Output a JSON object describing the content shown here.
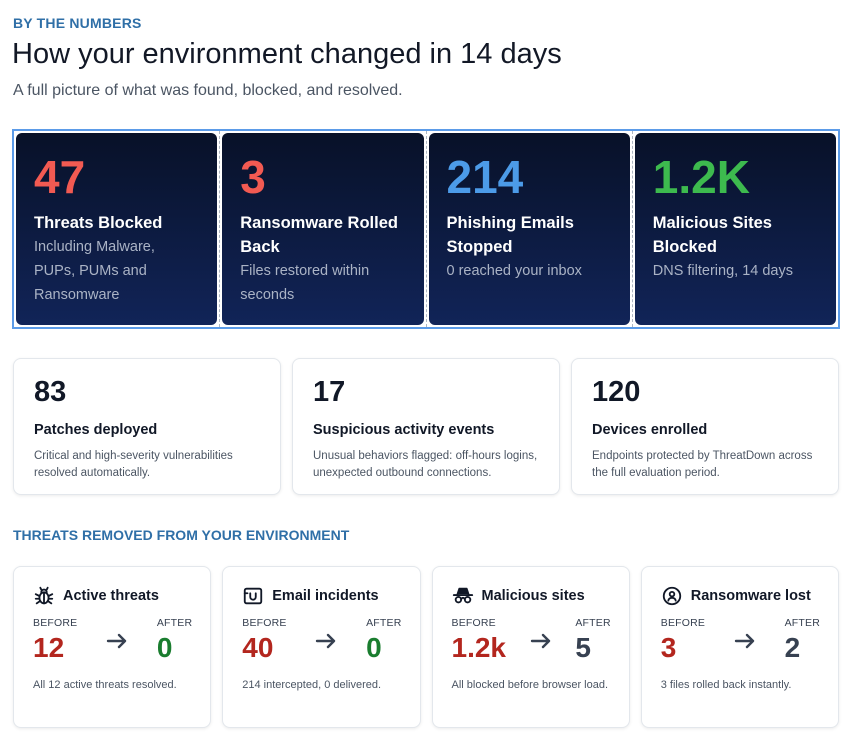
{
  "header": {
    "eyebrow": "BY THE NUMBERS",
    "title": "How your environment changed in 14 days",
    "subtitle": "A full picture of what was found, blocked, and resolved."
  },
  "big_stats": [
    {
      "value": "47",
      "label": "Threats Blocked",
      "desc": "Including Malware, PUPs, PUMs  and Ransomware",
      "color": "#f25a52"
    },
    {
      "value": "3",
      "label": "Ransomware Rolled Back",
      "desc": "Files restored within seconds",
      "color": "#f25a52"
    },
    {
      "value": "214",
      "label": "Phishing Emails Stopped",
      "desc": "0 reached your inbox",
      "color": "#4c9be8"
    },
    {
      "value": "1.2K",
      "label": "Malicious Sites Blocked",
      "desc": "DNS filtering, 14 days",
      "color": "#3dba4e"
    }
  ],
  "mid_stats": [
    {
      "value": "83",
      "label": "Patches deployed",
      "desc": "Critical and high-severity vulnerabilities resolved automatically."
    },
    {
      "value": "17",
      "label": "Suspicious activity events",
      "desc": "Unusual behaviors flagged: off-hours logins, unexpected outbound connections."
    },
    {
      "value": "120",
      "label": "Devices enrolled",
      "desc": "Endpoints protected by ThreatDown across the full evaluation period."
    }
  ],
  "threats_section": {
    "title": "THREATS REMOVED FROM YOUR ENVIRONMENT",
    "before_label": "BEFORE",
    "after_label": "AFTER",
    "cards": [
      {
        "icon": "bug-icon",
        "title": "Active threats",
        "before": "12",
        "after": "0",
        "desc": "All 12 active threats resolved.",
        "after_color": "#1a7d2f"
      },
      {
        "icon": "inbox-icon",
        "title": "Email incidents",
        "before": "40",
        "after": "0",
        "desc": "214 intercepted, 0 delivered.",
        "after_color": "#1a7d2f"
      },
      {
        "icon": "incognito-icon",
        "title": "Malicious sites",
        "before": "1.2k",
        "after": "5",
        "desc": "All blocked before browser load.",
        "after_color": "#374151"
      },
      {
        "icon": "lock-badge-icon",
        "title": "Ransomware lost",
        "before": "3",
        "after": "2",
        "desc": "3 files rolled back instantly.",
        "after_color": "#374151"
      }
    ],
    "before_color": "#b3261e"
  }
}
